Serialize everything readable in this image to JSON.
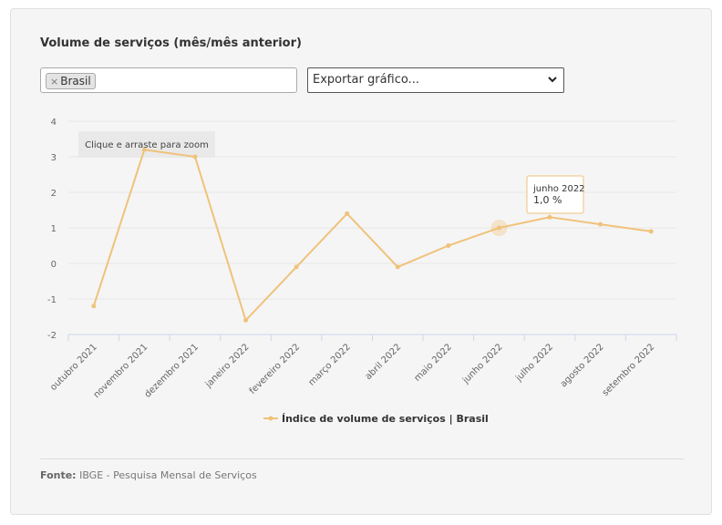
{
  "title": "Volume de serviços (mês/mês anterior)",
  "filter": {
    "tag_label": "Brasil",
    "remove_symbol": "×"
  },
  "export": {
    "label": "Exportar gráfico..."
  },
  "zoom_hint": "Clique e arraste para zoom",
  "tooltip": {
    "title": "junho 2022",
    "value": "1,0 %"
  },
  "source": {
    "label": "Fonte:",
    "text": "IBGE - Pesquisa Mensal de Serviços"
  },
  "colors": {
    "series": "#f0c27b",
    "grid": "#e6e6e6",
    "card": "#f5f5f5"
  },
  "chart_data": {
    "type": "line",
    "categories": [
      "outubro 2021",
      "novembro 2021",
      "dezembro 2021",
      "janeiro 2022",
      "fevereiro 2022",
      "março 2022",
      "abril 2022",
      "maio 2022",
      "junho 2022",
      "julho 2022",
      "agosto 2022",
      "setembro 2022"
    ],
    "series": [
      {
        "name": "Índice de volume de serviços | Brasil",
        "values": [
          -1.2,
          3.2,
          3.0,
          -1.6,
          -0.1,
          1.4,
          -0.1,
          0.5,
          1.0,
          1.3,
          1.1,
          0.9
        ]
      }
    ],
    "yticks": [
      "4",
      "3",
      "2",
      "1",
      "0",
      "-1",
      "-2"
    ],
    "ylim": [
      -2,
      4
    ],
    "grid": true,
    "legend_position": "bottom",
    "highlighted_category": "junho 2022"
  }
}
